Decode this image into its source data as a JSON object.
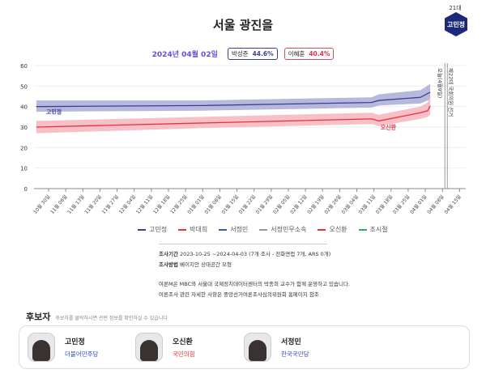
{
  "header": {
    "title": "서울 광진을",
    "badge_term": "21대",
    "badge_name": "고민정",
    "date": "2024년 04월 02일",
    "pills": [
      {
        "name": "박성준",
        "value": "44.6%",
        "color": "#3a3f8a"
      },
      {
        "name": "이혜훈",
        "value": "40.4%",
        "color": "#e0304a"
      }
    ]
  },
  "chart_data": {
    "type": "line",
    "ylim": [
      0,
      60
    ],
    "yticks": [
      0,
      10,
      20,
      30,
      40,
      50,
      60
    ],
    "xticks": [
      "10월 30일",
      "11월 06일",
      "11월 13일",
      "11월 20일",
      "11월 27일",
      "12월 04일",
      "12월 11일",
      "12월 18일",
      "12월 25일",
      "01월 01일",
      "01월 08일",
      "01월 15일",
      "01월 22일",
      "01월 29일",
      "02월 05일",
      "02월 12일",
      "02월 19일",
      "02월 26일",
      "03월 04일",
      "03월 11일",
      "03월 18일",
      "03월 25일",
      "04월 01일",
      "04월 08일",
      "04월 15일"
    ],
    "xtick_dates": [
      "2023-10-30",
      "2023-11-06",
      "2023-11-13",
      "2023-11-20",
      "2023-11-27",
      "2023-12-04",
      "2023-12-11",
      "2023-12-18",
      "2023-12-25",
      "2024-01-01",
      "2024-01-08",
      "2024-01-15",
      "2024-01-22",
      "2024-01-29",
      "2024-02-05",
      "2024-02-12",
      "2024-02-19",
      "2024-02-26",
      "2024-03-04",
      "2024-03-11",
      "2024-03-18",
      "2024-03-25",
      "2024-04-01",
      "2024-04-08",
      "2024-04-15"
    ],
    "series": [
      {
        "name": "고민정",
        "color": "#3a3f9a",
        "band": "#a9acd6",
        "label": "고민정",
        "x": [
          "2023-10-25",
          "2024-01-01",
          "2024-03-10",
          "2024-03-13",
          "2024-03-30",
          "2024-04-03"
        ],
        "y": [
          40,
          40.5,
          42,
          43,
          44.5,
          47
        ],
        "lo": [
          37.5,
          38,
          39.5,
          40.5,
          41.5,
          43.5
        ],
        "hi": [
          43,
          43,
          44.5,
          46,
          48,
          51
        ]
      },
      {
        "name": "오신환",
        "color": "#e8303f",
        "band": "#f6b5bc",
        "label": "오신환",
        "x": [
          "2023-10-25",
          "2024-01-01",
          "2024-03-10",
          "2024-03-13",
          "2024-03-30",
          "2024-04-02",
          "2024-04-03"
        ],
        "y": [
          30,
          32,
          34,
          33,
          37,
          38,
          40.4
        ],
        "lo": [
          27,
          29.5,
          31.5,
          30.5,
          34,
          35,
          36
        ],
        "hi": [
          33,
          35,
          37,
          36,
          40,
          42,
          45
        ]
      }
    ],
    "markers": [
      {
        "date": "2024-04-09",
        "label": "오늘(4월9일)"
      },
      {
        "date": "2024-04-10",
        "label": "제22대 국회의원 선거"
      }
    ],
    "legend": [
      {
        "name": "고민정",
        "color": "#3a3f9a"
      },
      {
        "name": "박대희",
        "color": "#e8303f"
      },
      {
        "name": "서정민",
        "color": "#2c5fb5"
      },
      {
        "name": "서정민무소속",
        "color": "#999999"
      },
      {
        "name": "오신환",
        "color": "#e8303f"
      },
      {
        "name": "조시절",
        "color": "#2bb35a"
      }
    ]
  },
  "notes": {
    "period_label": "조사기간",
    "period": "2023-10-25 ~2024-04-03 (7개 조사 - 전화면접 7개, ARS 0개)",
    "method_label": "조사방법",
    "method": "베이지안 상태공간 모형",
    "line1": "여론M은 MBC와 서울대 국제정치데이터센터의 박종희 교수가 함께 운영하고 있습니다.",
    "line2": "여론조사 관련 자세한 사항은 중앙선거여론조사심의위원회 홈페이지 참조"
  },
  "candidates": {
    "title": "후보자",
    "subtitle": "후보자를 클릭하시면 관련 정보를 확인하실 수 있습니다",
    "items": [
      {
        "name": "고민정",
        "party": "더불어민주당",
        "party_color": "#2c4fc0"
      },
      {
        "name": "오신환",
        "party": "국민의힘",
        "party_color": "#e8303f"
      },
      {
        "name": "서정민",
        "party": "한국국민당",
        "party_color": "#2c4fc0"
      }
    ]
  }
}
